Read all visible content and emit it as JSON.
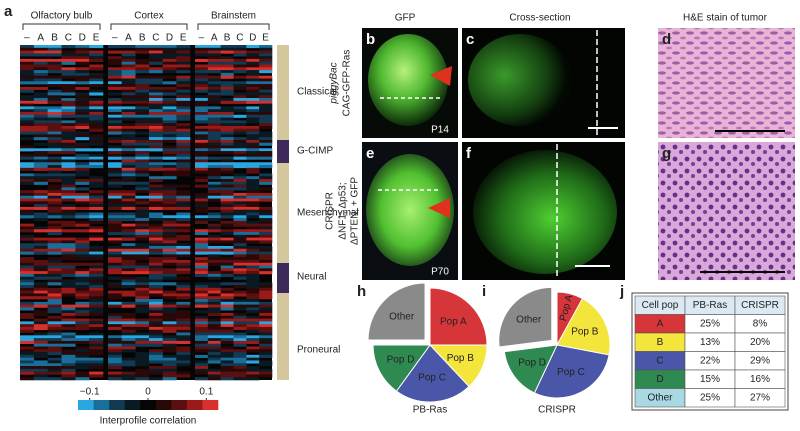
{
  "heatmap": {
    "letter": "a",
    "groups": [
      "Olfactory bulb",
      "Cortex",
      "Brainstem"
    ],
    "columns": [
      "–",
      "A",
      "B",
      "C",
      "D",
      "E"
    ],
    "subtypes": [
      "Classical",
      "G-CIMP",
      "Mesenchymal",
      "Neural",
      "Proneural"
    ],
    "colorbar": {
      "ticks": [
        {
          "value": -0.1,
          "label": "−0.1"
        },
        0,
        0.1
      ],
      "lim": [
        -0.12,
        0.12
      ],
      "label": "Interprofile correlation"
    }
  },
  "images": {
    "letters": [
      "b",
      "c",
      "d",
      "e",
      "f",
      "g"
    ],
    "column_titles": [
      "GFP",
      "Cross-section",
      "H&E stain of tumor"
    ],
    "row1_label": [
      "piggyBac",
      "CAG-GFP-Ras"
    ],
    "row2_label": [
      "CRISPR",
      "ΔNF1; Δp53;",
      "ΔPTEN; + GFP"
    ],
    "ages": [
      "P14",
      "P70"
    ]
  },
  "chart_data": [
    {
      "type": "pie",
      "letter": "h",
      "name": "PB-Ras",
      "categories": [
        "Pop A",
        "Pop B",
        "Pop C",
        "Pop D",
        "Other"
      ],
      "values": [
        25,
        13,
        22,
        15,
        25
      ],
      "colors": [
        "#d6363a",
        "#f3e53c",
        "#4a57a8",
        "#2e8a50",
        "#8a8a8a"
      ],
      "exploded": "Other"
    },
    {
      "type": "pie",
      "letter": "i",
      "name": "CRISPR",
      "categories": [
        "Pop A",
        "Pop B",
        "Pop C",
        "Pop D",
        "Other"
      ],
      "values": [
        8,
        20,
        29,
        16,
        27
      ],
      "colors": [
        "#d6363a",
        "#f3e53c",
        "#4a57a8",
        "#2e8a50",
        "#8a8a8a"
      ],
      "exploded": "Other"
    }
  ],
  "table": {
    "letter": "j",
    "header": [
      "Cell pop",
      "PB-Ras",
      "CRISPR"
    ],
    "rows": [
      [
        "A",
        "25%",
        "8%"
      ],
      [
        "B",
        "13%",
        "20%"
      ],
      [
        "C",
        "22%",
        "29%"
      ],
      [
        "D",
        "15%",
        "16%"
      ],
      [
        "Other",
        "25%",
        "27%"
      ]
    ],
    "row_colors": [
      "#d6363a",
      "#f3e53c",
      "#4a57a8",
      "#2e8a50",
      "#a8d8e2"
    ]
  }
}
